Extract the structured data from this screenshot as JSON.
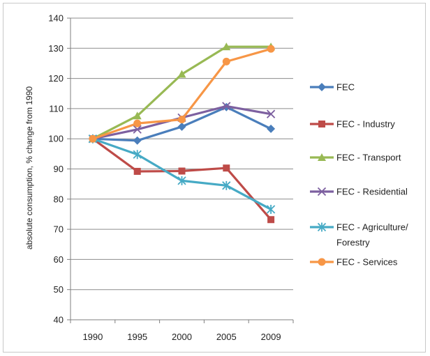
{
  "chart_data": {
    "type": "line",
    "title": "",
    "xlabel": "",
    "ylabel": "absolute consumption, % change from 1990",
    "x": [
      "1990",
      "1995",
      "2000",
      "2005",
      "2009"
    ],
    "ylim": [
      40,
      140
    ],
    "yticks": [
      40,
      50,
      60,
      70,
      80,
      90,
      100,
      110,
      120,
      130,
      140
    ],
    "grid": true,
    "legend_position": "right",
    "series": [
      {
        "name": "FEC",
        "color": "#4a7ebb",
        "marker": "diamond",
        "values": [
          100,
          99.4,
          104,
          110.5,
          103.3
        ]
      },
      {
        "name": "FEC - Industry",
        "color": "#be4b48",
        "marker": "square",
        "values": [
          100,
          89.2,
          89.3,
          90.3,
          73.2
        ]
      },
      {
        "name": "FEC - Transport",
        "color": "#98b954",
        "marker": "triangle",
        "values": [
          100,
          107.6,
          121.4,
          130.5,
          130.5
        ]
      },
      {
        "name": "FEC - Residential",
        "color": "#7d60a0",
        "marker": "x",
        "values": [
          100,
          103.1,
          107,
          110.8,
          108.2
        ]
      },
      {
        "name": "FEC - Agriculture/ Forestry",
        "color": "#46aac5",
        "marker": "asterisk",
        "legend_lines": [
          "FEC - Agriculture/",
          "Forestry"
        ],
        "values": [
          100,
          94.8,
          86.1,
          84.5,
          76.6
        ]
      },
      {
        "name": "FEC - Services",
        "color": "#f79646",
        "marker": "circle",
        "values": [
          100,
          105.1,
          106.4,
          125.6,
          129.8
        ]
      }
    ]
  }
}
